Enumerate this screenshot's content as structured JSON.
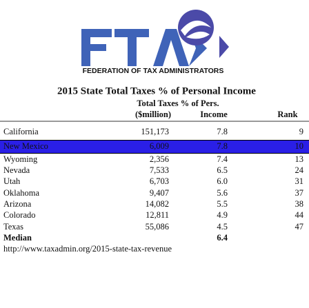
{
  "logo": {
    "caption": "FEDERATION OF TAX ADMINISTRATORS"
  },
  "title": "2015 State Total Taxes % of Personal Income",
  "header": {
    "line1": "Total Taxes % of Pers.",
    "columns": [
      "($million)",
      "Income",
      "Rank"
    ]
  },
  "table": {
    "rows": [
      [
        "California",
        "151,173",
        "7.8",
        "9"
      ],
      [
        "New Mexico",
        "6,009",
        "7.8",
        "10"
      ],
      [
        "Wyoming",
        "2,356",
        "7.4",
        "13"
      ],
      [
        "Nevada",
        "7,533",
        "6.5",
        "24"
      ],
      [
        "Utah",
        "6,703",
        "6.0",
        "31"
      ],
      [
        "Oklahoma",
        "9,407",
        "5.6",
        "37"
      ],
      [
        "Arizona",
        "14,082",
        "5.5",
        "38"
      ],
      [
        "Colorado",
        "12,811",
        "4.9",
        "44"
      ],
      [
        "Texas",
        "55,086",
        "4.5",
        "47"
      ]
    ],
    "median": {
      "label": "Median",
      "value": "6.4"
    }
  },
  "source": "http://www.taxadmin.org/2015-state-tax-revenue"
}
